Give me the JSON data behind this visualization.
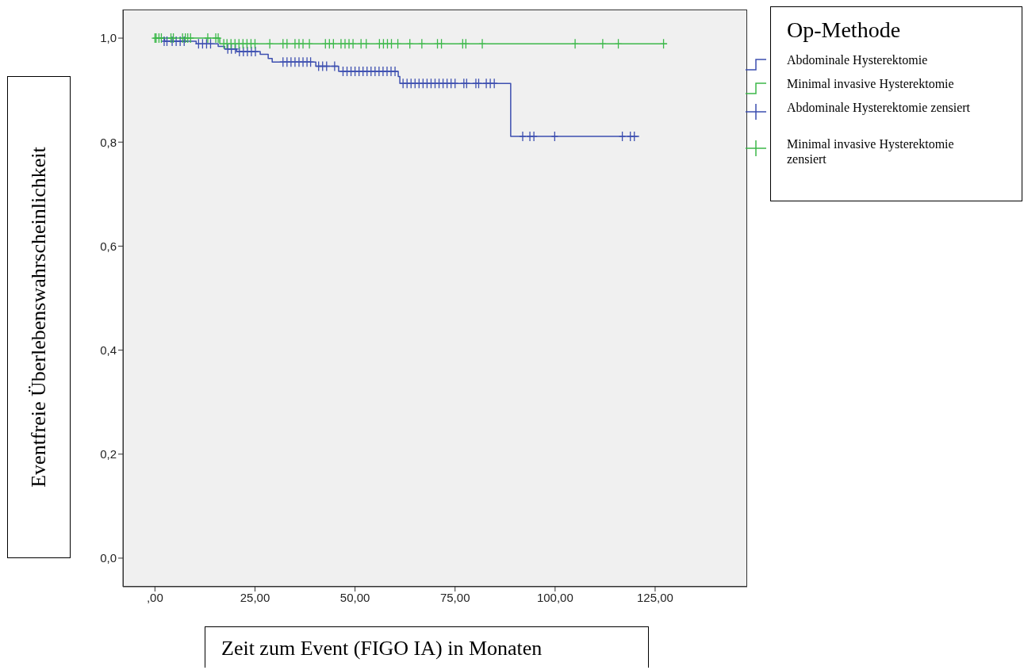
{
  "chart_data": {
    "type": "step",
    "xlabel": "Zeit zum Event (FIGO IA) in Monaten",
    "ylabel": "Eventfreie Überlebenswahrscheinlichkeit",
    "legend_title": "Op-Methode",
    "legend": "right",
    "grid": false,
    "line_style": "solid",
    "xlim": [
      -8,
      148
    ],
    "xticks": [
      {
        "value": 0,
        "label": ",00"
      },
      {
        "value": 25,
        "label": "25,00"
      },
      {
        "value": 50,
        "label": "50,00"
      },
      {
        "value": 75,
        "label": "75,00"
      },
      {
        "value": 100,
        "label": "100,00"
      },
      {
        "value": 125,
        "label": "125,00"
      }
    ],
    "ylim": [
      -0.055,
      1.055
    ],
    "yticks": [
      {
        "value": 0,
        "label": "0,0"
      },
      {
        "value": 0.2,
        "label": "0,2"
      },
      {
        "value": 0.4,
        "label": "0,4"
      },
      {
        "value": 0.6,
        "label": "0,6"
      },
      {
        "value": 0.8,
        "label": "0,8"
      },
      {
        "value": 1,
        "label": "1,0"
      }
    ],
    "series": [
      {
        "name": "Abdominale Hysterektomie",
        "color": "#3d4fb0",
        "x": [
          0,
          2.4,
          10.3,
          15.8,
          17.4,
          20.4,
          26.3,
          28.3,
          29.3,
          40.2,
          45.9,
          60.8,
          61.2,
          88.9,
          121
        ],
        "values": [
          1,
          0.994,
          0.989,
          0.984,
          0.979,
          0.974,
          0.969,
          0.961,
          0.954,
          0.946,
          0.936,
          0.926,
          0.913,
          0.811,
          0.811
        ]
      },
      {
        "name": "Minimal invasive Hysterektomie",
        "color": "#3cb84a",
        "x": [
          0,
          16.2,
          128
        ],
        "values": [
          1,
          0.989,
          0.989
        ]
      },
      {
        "name": "Abdominale Hysterektomie zensiert",
        "type": "scatter",
        "marker": "cross",
        "color": "#3d4fb0",
        "x": [
          2.3,
          3,
          4.3,
          5.3,
          6.3,
          7.3,
          10.9,
          11.9,
          12.9,
          13.9,
          18.2,
          19.1,
          20.1,
          21.1,
          22.1,
          23.1,
          24.1,
          25.1,
          32,
          33,
          34,
          35,
          36,
          37,
          38,
          38.9,
          40.9,
          41.9,
          42.9,
          44.9,
          47,
          48,
          49,
          50,
          51,
          52,
          53,
          54,
          55,
          56,
          57,
          58,
          59,
          60,
          62,
          63,
          64,
          65,
          66,
          67,
          68,
          69,
          70,
          71,
          72,
          73,
          74,
          75,
          77.2,
          77.9,
          80.2,
          80.9,
          82.8,
          83.8,
          84.8,
          91.9,
          93.7,
          94.7,
          99.9,
          116.8,
          118.8,
          119.8
        ],
        "values": [
          0.994,
          0.994,
          0.994,
          0.994,
          0.994,
          0.994,
          0.989,
          0.989,
          0.989,
          0.989,
          0.979,
          0.979,
          0.979,
          0.974,
          0.974,
          0.974,
          0.974,
          0.974,
          0.954,
          0.954,
          0.954,
          0.954,
          0.954,
          0.954,
          0.954,
          0.954,
          0.946,
          0.946,
          0.946,
          0.946,
          0.936,
          0.936,
          0.936,
          0.936,
          0.936,
          0.936,
          0.936,
          0.936,
          0.936,
          0.936,
          0.936,
          0.936,
          0.936,
          0.936,
          0.913,
          0.913,
          0.913,
          0.913,
          0.913,
          0.913,
          0.913,
          0.913,
          0.913,
          0.913,
          0.913,
          0.913,
          0.913,
          0.913,
          0.913,
          0.913,
          0.913,
          0.913,
          0.913,
          0.913,
          0.913,
          0.811,
          0.811,
          0.811,
          0.811,
          0.811,
          0.811,
          0.811
        ]
      },
      {
        "name": "Minimal invasive Hysterektomie zensiert",
        "type": "scatter",
        "marker": "cross",
        "color": "#3cb84a",
        "x": [
          0,
          0.3,
          1,
          1.6,
          4,
          4.6,
          6.9,
          7.6,
          8.2,
          8.9,
          13.2,
          15.2,
          15.8,
          17.2,
          18,
          19,
          20,
          21,
          22,
          23,
          24,
          25,
          28.7,
          32,
          33,
          35,
          36,
          37,
          38.6,
          42.6,
          43.6,
          44.6,
          46.5,
          47.5,
          48.5,
          49.5,
          51.5,
          52.8,
          56.1,
          57.1,
          58.1,
          59.1,
          60.7,
          63.7,
          66.7,
          70.6,
          71.6,
          76.9,
          77.7,
          81.8,
          105,
          111.9,
          115.8,
          127.1
        ],
        "values": [
          1,
          1,
          1,
          1,
          1,
          1,
          1,
          1,
          1,
          1,
          1,
          1,
          1,
          0.989,
          0.989,
          0.989,
          0.989,
          0.989,
          0.989,
          0.989,
          0.989,
          0.989,
          0.989,
          0.989,
          0.989,
          0.989,
          0.989,
          0.989,
          0.989,
          0.989,
          0.989,
          0.989,
          0.989,
          0.989,
          0.989,
          0.989,
          0.989,
          0.989,
          0.989,
          0.989,
          0.989,
          0.989,
          0.989,
          0.989,
          0.989,
          0.989,
          0.989,
          0.989,
          0.989,
          0.989,
          0.989,
          0.989,
          0.989,
          0.989
        ]
      }
    ]
  }
}
